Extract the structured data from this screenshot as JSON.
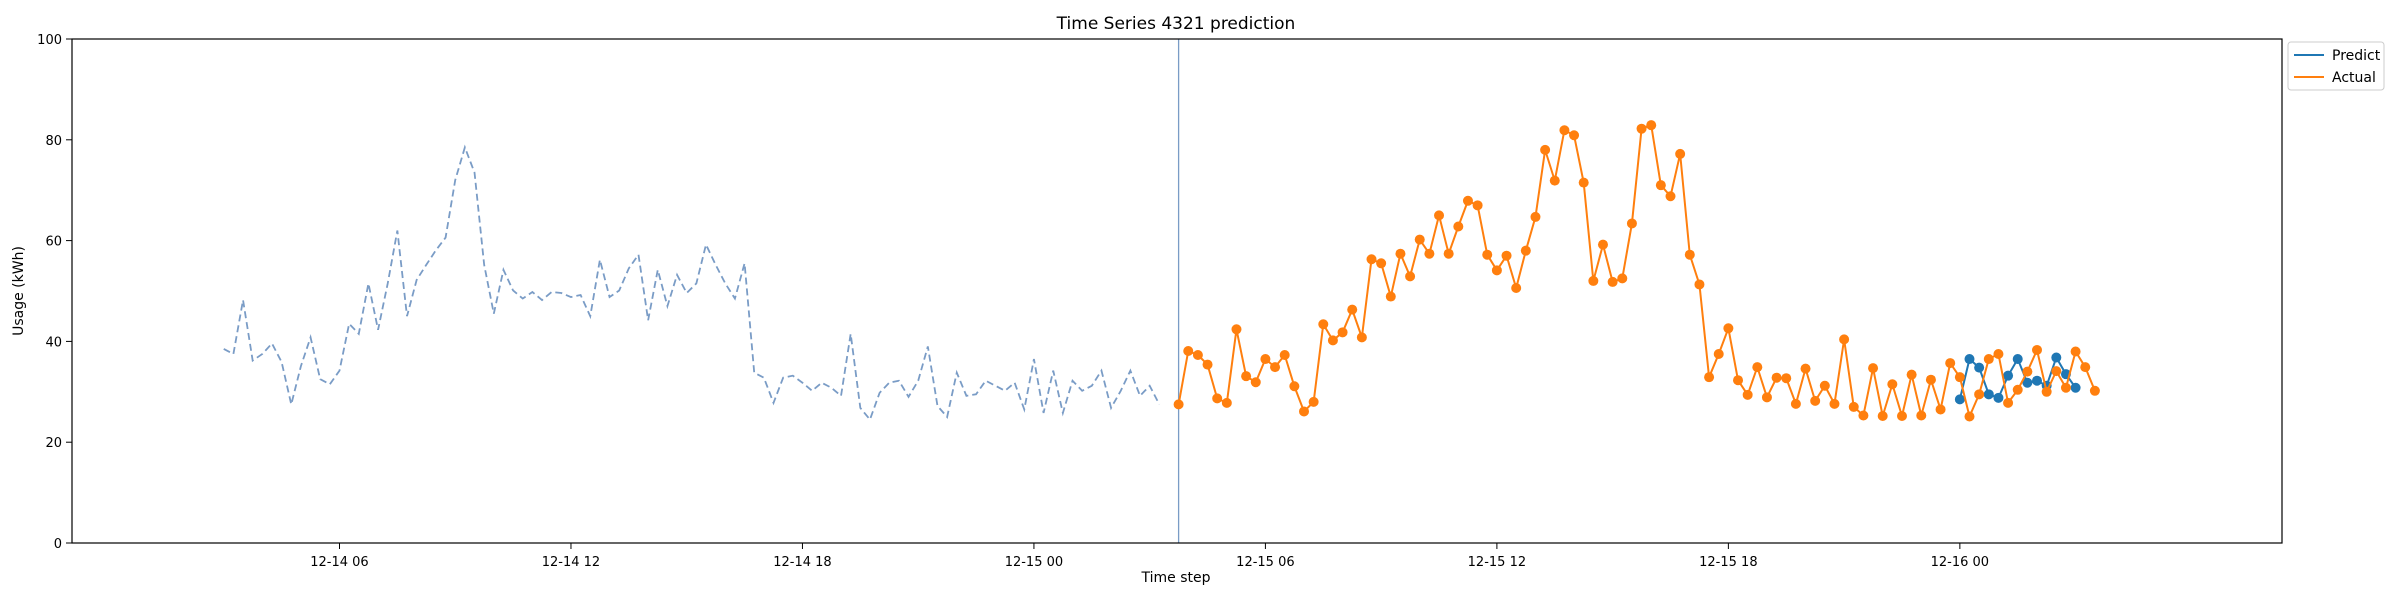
{
  "chart_data": {
    "type": "line",
    "title": "Time Series 4321 prediction",
    "xlabel": "Time step",
    "ylabel": "Usage (kWh)",
    "ylim": [
      0,
      100
    ],
    "xlim": [
      "2025-12-13 23:04",
      "2025-12-16 08:21"
    ],
    "grid": false,
    "legend_position": "top-right-outside",
    "x_ticks": [
      "12-14 06",
      "12-14 12",
      "12-14 18",
      "12-15 00",
      "12-15 06",
      "12-15 12",
      "12-15 18",
      "12-16 00"
    ],
    "x_tick_times": [
      "2025-12-14 06:00",
      "2025-12-14 12:00",
      "2025-12-14 18:00",
      "2025-12-15 00:00",
      "2025-12-15 06:00",
      "2025-12-15 12:00",
      "2025-12-15 18:00",
      "2025-12-16 00:00"
    ],
    "y_ticks": [
      0,
      20,
      40,
      60,
      80,
      100
    ],
    "forecast_start": "2025-12-15 03:45",
    "colors": {
      "predict": "#1f77b4",
      "actual": "#ff7f0e",
      "history": "#7a9cc6",
      "vline": "#7a9cc6",
      "axis": "#000000"
    },
    "history": {
      "start": "2025-12-14 03:00",
      "interval_minutes": 15,
      "values": [
        38.5,
        37.5,
        48.2,
        36.2,
        37.5,
        39.6,
        35.9,
        27.5,
        35.1,
        40.8,
        32.5,
        31.5,
        34.2,
        43.5,
        41.5,
        51.5,
        42.3,
        51.5,
        62,
        45,
        52.2,
        55.2,
        58.1,
        60.6,
        72,
        78.5,
        73.5,
        55.2,
        45.5,
        54.2,
        50.1,
        48.5,
        49.8,
        48.2,
        49.8,
        49.6,
        48.8,
        49.2,
        45,
        56.2,
        48.8,
        50.1,
        54.5,
        57.2,
        44.2,
        54.2,
        47,
        53.2,
        49.6,
        51.5,
        59.2,
        55.2,
        51.5,
        48.5,
        55.5,
        33.8,
        32.8,
        27.8,
        32.8,
        33.2,
        31.8,
        30.2,
        31.8,
        30.8,
        29.2,
        41.5,
        26.8,
        24.5,
        29.8,
        31.8,
        32.2,
        29,
        32.2,
        39,
        27.2,
        25,
        33.8,
        29.2,
        29.5,
        32.2,
        31.2,
        30.2,
        31.8,
        26.5,
        36.5,
        25.8,
        34.2,
        25.8,
        32.2,
        30.2,
        31.2,
        34.2,
        26.8,
        30.2,
        34.2,
        29.2,
        31.2,
        27.5
      ]
    },
    "series": [
      {
        "name": "Predict",
        "start": "2025-12-16 00:00",
        "interval_minutes": 15,
        "values": [
          28.5,
          36.5,
          34.8,
          29.5,
          28.8,
          33.2,
          36.5,
          31.8,
          32.2,
          31.2,
          36.8,
          33.5,
          30.8
        ]
      },
      {
        "name": "Actual",
        "start": "2025-12-15 03:45",
        "interval_minutes": 15,
        "values": [
          27.5,
          38.1,
          37.3,
          35.4,
          28.7,
          27.8,
          42.4,
          33.1,
          31.9,
          36.5,
          34.9,
          37.3,
          31.1,
          26.1,
          28,
          43.4,
          40.2,
          41.8,
          46.3,
          40.8,
          56.3,
          55.5,
          48.9,
          57.4,
          52.9,
          60.2,
          57.4,
          65,
          57.4,
          62.8,
          67.9,
          67,
          57.2,
          54.1,
          57,
          50.6,
          58,
          64.7,
          78,
          71.9,
          81.9,
          80.9,
          71.5,
          52,
          59.2,
          51.8,
          52.5,
          63.4,
          82.2,
          82.9,
          71,
          68.8,
          77.2,
          57.2,
          51.3,
          32.9,
          37.5,
          42.6,
          32.3,
          29.4,
          34.9,
          28.9,
          32.8,
          32.7,
          27.6,
          34.6,
          28.2,
          31.2,
          27.6,
          40.4,
          27,
          25.3,
          34.7,
          25.2,
          31.5,
          25.2,
          33.4,
          25.3,
          32.4,
          26.5,
          35.7,
          32.9,
          25.1,
          29.5,
          36.5,
          37.5,
          27.8,
          30.4,
          34,
          38.3,
          30,
          34.1,
          30.8,
          38,
          34.9,
          30.2
        ]
      }
    ]
  }
}
